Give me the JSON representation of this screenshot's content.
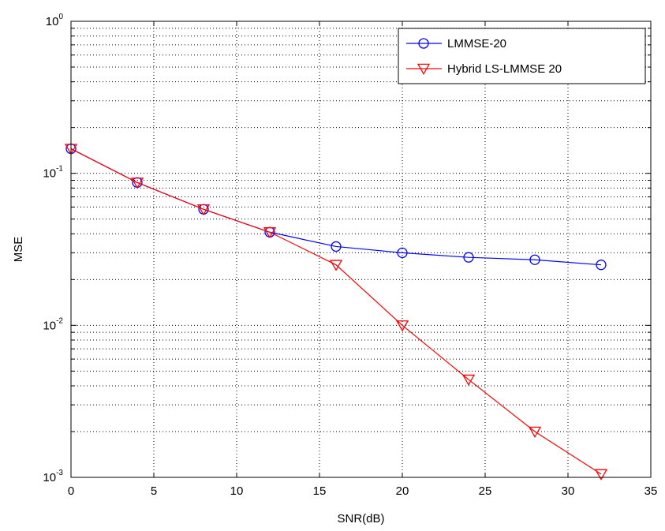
{
  "chart_data": {
    "type": "line",
    "title": "",
    "xlabel": "SNR(dB)",
    "ylabel": "MSE",
    "xlim": [
      0,
      35
    ],
    "ylim": [
      0.001,
      1
    ],
    "yscale": "log",
    "grid": true,
    "legend_position": "top-right",
    "x_ticks": [
      "0",
      "5",
      "10",
      "15",
      "20",
      "25",
      "30",
      "35"
    ],
    "y_ticks": [
      {
        "base": "10",
        "exp": "0",
        "value": 1
      },
      {
        "base": "10",
        "exp": "-1",
        "value": 0.1
      },
      {
        "base": "10",
        "exp": "-2",
        "value": 0.01
      },
      {
        "base": "10",
        "exp": "-3",
        "value": 0.001
      }
    ],
    "x": [
      0,
      4,
      8,
      12,
      16,
      20,
      24,
      28,
      32
    ],
    "series": [
      {
        "name": "LMMSE-20",
        "color": "#0000ff",
        "marker": "circle",
        "values": [
          0.145,
          0.087,
          0.058,
          0.041,
          0.033,
          0.03,
          0.028,
          0.027,
          0.025
        ]
      },
      {
        "name": "Hybrid LS-LMMSE 20",
        "color": "#ff0000",
        "marker": "triangle-down",
        "values": [
          0.145,
          0.087,
          0.058,
          0.041,
          0.025,
          0.01,
          0.0044,
          0.002,
          0.00105
        ]
      }
    ]
  }
}
